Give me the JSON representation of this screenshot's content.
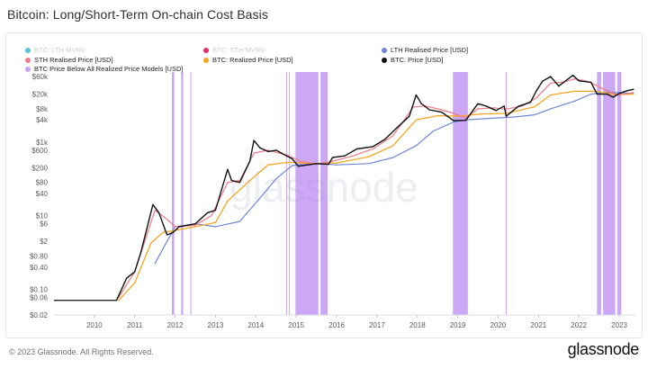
{
  "header": {
    "title": "Bitcoin: Long/Short-Term On-chain Cost Basis"
  },
  "legend": {
    "items": [
      {
        "label": "BTC: LTH-MVRV",
        "color": "#59c3d8",
        "active": false
      },
      {
        "label": "BTC: STH-MVRV",
        "color": "#e3306c",
        "active": false
      },
      {
        "label": "LTH Realised Price [USD]",
        "color": "#6f86d6",
        "active": true
      },
      {
        "label": "STH Realised Price [USD]",
        "color": "#f07a86",
        "active": true
      },
      {
        "label": "BTC: Realized Price [USD]",
        "color": "#f5a623",
        "active": true
      },
      {
        "label": "BTC: Price [USD]",
        "color": "#111111",
        "active": true
      },
      {
        "label": "BTC Price Below All Realized Price Models [USD]",
        "color": "#c9a2f5",
        "active": true
      }
    ]
  },
  "watermark": "glassnode",
  "footer": {
    "copyright": "© 2023 Glassnode. All Rights Reserved.",
    "brand": "glassnode"
  },
  "chart_data": {
    "type": "line",
    "title": "Bitcoin: Long/Short-Term On-chain Cost Basis",
    "y_scale": "log",
    "xlim": [
      2009.0,
      2023.4
    ],
    "ylim": [
      0.02,
      80000
    ],
    "x_ticks": [
      {
        "v": 2010,
        "label": "2010"
      },
      {
        "v": 2011,
        "label": "2011"
      },
      {
        "v": 2012,
        "label": "2012"
      },
      {
        "v": 2013,
        "label": "2013"
      },
      {
        "v": 2014,
        "label": "2014"
      },
      {
        "v": 2015,
        "label": "2015"
      },
      {
        "v": 2016,
        "label": "2016"
      },
      {
        "v": 2017,
        "label": "2017"
      },
      {
        "v": 2018,
        "label": "2018"
      },
      {
        "v": 2019,
        "label": "2019"
      },
      {
        "v": 2020,
        "label": "2020"
      },
      {
        "v": 2021,
        "label": "2021"
      },
      {
        "v": 2022,
        "label": "2022"
      },
      {
        "v": 2023,
        "label": "2023"
      }
    ],
    "y_ticks": [
      {
        "v": 0.02,
        "label": "$0.02"
      },
      {
        "v": 0.06,
        "label": "$0.06"
      },
      {
        "v": 0.1,
        "label": "$0.10"
      },
      {
        "v": 0.4,
        "label": "$0.40"
      },
      {
        "v": 0.8,
        "label": "$0.80"
      },
      {
        "v": 2,
        "label": "$2"
      },
      {
        "v": 6,
        "label": "$6"
      },
      {
        "v": 10,
        "label": "$10"
      },
      {
        "v": 40,
        "label": "$40"
      },
      {
        "v": 80,
        "label": "$80"
      },
      {
        "v": 200,
        "label": "$200"
      },
      {
        "v": 600,
        "label": "$600"
      },
      {
        "v": 1000,
        "label": "$1k"
      },
      {
        "v": 4000,
        "label": "$4k"
      },
      {
        "v": 8000,
        "label": "$8k"
      },
      {
        "v": 20000,
        "label": "$20k"
      },
      {
        "v": 60000,
        "label": "$60k"
      }
    ],
    "grid": false,
    "legend_position": "top",
    "series": [
      {
        "name": "BTC: Price [USD]",
        "color": "#111111",
        "points": [
          [
            2010.55,
            0.05
          ],
          [
            2010.8,
            0.2
          ],
          [
            2011.0,
            0.3
          ],
          [
            2011.15,
            1
          ],
          [
            2011.45,
            20
          ],
          [
            2011.6,
            12
          ],
          [
            2011.8,
            3
          ],
          [
            2011.95,
            3.5
          ],
          [
            2012.1,
            5
          ],
          [
            2012.5,
            6
          ],
          [
            2012.8,
            12
          ],
          [
            2013.0,
            14
          ],
          [
            2013.3,
            180
          ],
          [
            2013.4,
            90
          ],
          [
            2013.6,
            80
          ],
          [
            2013.85,
            300
          ],
          [
            2013.95,
            1100
          ],
          [
            2014.1,
            700
          ],
          [
            2014.3,
            550
          ],
          [
            2014.5,
            600
          ],
          [
            2014.9,
            350
          ],
          [
            2015.05,
            220
          ],
          [
            2015.5,
            260
          ],
          [
            2015.8,
            250
          ],
          [
            2015.9,
            380
          ],
          [
            2016.2,
            420
          ],
          [
            2016.5,
            650
          ],
          [
            2016.9,
            750
          ],
          [
            2017.2,
            1200
          ],
          [
            2017.5,
            2500
          ],
          [
            2017.8,
            5000
          ],
          [
            2017.97,
            19000
          ],
          [
            2018.1,
            11000
          ],
          [
            2018.3,
            7500
          ],
          [
            2018.6,
            6500
          ],
          [
            2018.9,
            3800
          ],
          [
            2019.2,
            3900
          ],
          [
            2019.5,
            11000
          ],
          [
            2019.7,
            9500
          ],
          [
            2019.95,
            7200
          ],
          [
            2020.15,
            9500
          ],
          [
            2020.2,
            5000
          ],
          [
            2020.5,
            9300
          ],
          [
            2020.8,
            12000
          ],
          [
            2020.95,
            25000
          ],
          [
            2021.1,
            45000
          ],
          [
            2021.3,
            60000
          ],
          [
            2021.5,
            33000
          ],
          [
            2021.6,
            40000
          ],
          [
            2021.85,
            65000
          ],
          [
            2022.0,
            46000
          ],
          [
            2022.3,
            42000
          ],
          [
            2022.45,
            20000
          ],
          [
            2022.7,
            20000
          ],
          [
            2022.85,
            16500
          ],
          [
            2023.0,
            21000
          ],
          [
            2023.2,
            25000
          ],
          [
            2023.35,
            27000
          ]
        ]
      },
      {
        "name": "STH Realised Price [USD]",
        "color": "#f07a86",
        "points": [
          [
            2010.6,
            0.06
          ],
          [
            2011.0,
            0.3
          ],
          [
            2011.3,
            3
          ],
          [
            2011.5,
            14
          ],
          [
            2011.8,
            8
          ],
          [
            2012.0,
            5
          ],
          [
            2012.5,
            5.5
          ],
          [
            2012.9,
            10
          ],
          [
            2013.3,
            80
          ],
          [
            2013.6,
            90
          ],
          [
            2013.95,
            500
          ],
          [
            2014.3,
            600
          ],
          [
            2014.8,
            430
          ],
          [
            2015.1,
            300
          ],
          [
            2015.5,
            250
          ],
          [
            2015.9,
            300
          ],
          [
            2016.4,
            420
          ],
          [
            2016.9,
            650
          ],
          [
            2017.4,
            1500
          ],
          [
            2017.9,
            9000
          ],
          [
            2018.2,
            9500
          ],
          [
            2018.6,
            7500
          ],
          [
            2018.9,
            6000
          ],
          [
            2019.2,
            4500
          ],
          [
            2019.5,
            8000
          ],
          [
            2019.9,
            8500
          ],
          [
            2020.2,
            7800
          ],
          [
            2020.6,
            9500
          ],
          [
            2020.95,
            16000
          ],
          [
            2021.3,
            40000
          ],
          [
            2021.6,
            42000
          ],
          [
            2021.9,
            52000
          ],
          [
            2022.2,
            45000
          ],
          [
            2022.5,
            32000
          ],
          [
            2022.8,
            22000
          ],
          [
            2023.0,
            19000
          ],
          [
            2023.35,
            22000
          ]
        ]
      },
      {
        "name": "BTC: Realized Price [USD]",
        "color": "#f5a623",
        "points": [
          [
            2010.6,
            0.05
          ],
          [
            2011.0,
            0.15
          ],
          [
            2011.4,
            1.8
          ],
          [
            2011.7,
            3.5
          ],
          [
            2012.0,
            4
          ],
          [
            2012.5,
            5
          ],
          [
            2013.0,
            6.5
          ],
          [
            2013.3,
            25
          ],
          [
            2013.9,
            100
          ],
          [
            2014.3,
            240
          ],
          [
            2014.8,
            280
          ],
          [
            2015.5,
            260
          ],
          [
            2016.0,
            270
          ],
          [
            2016.8,
            400
          ],
          [
            2017.4,
            800
          ],
          [
            2017.97,
            4000
          ],
          [
            2018.5,
            5200
          ],
          [
            2019.0,
            5000
          ],
          [
            2019.6,
            5800
          ],
          [
            2020.2,
            6000
          ],
          [
            2020.9,
            9000
          ],
          [
            2021.3,
            19000
          ],
          [
            2021.9,
            24000
          ],
          [
            2022.4,
            24000
          ],
          [
            2022.9,
            19500
          ],
          [
            2023.35,
            20000
          ]
        ]
      },
      {
        "name": "LTH Realised Price [USD]",
        "color": "#6f86d6",
        "points": [
          [
            2011.5,
            0.5
          ],
          [
            2011.8,
            2
          ],
          [
            2012.0,
            5
          ],
          [
            2012.5,
            6
          ],
          [
            2013.0,
            5
          ],
          [
            2013.6,
            7
          ],
          [
            2014.1,
            30
          ],
          [
            2014.5,
            100
          ],
          [
            2014.9,
            230
          ],
          [
            2015.5,
            260
          ],
          [
            2016.0,
            240
          ],
          [
            2016.8,
            260
          ],
          [
            2017.4,
            380
          ],
          [
            2017.97,
            800
          ],
          [
            2018.4,
            2000
          ],
          [
            2018.9,
            3500
          ],
          [
            2019.2,
            4000
          ],
          [
            2019.8,
            4400
          ],
          [
            2020.4,
            4800
          ],
          [
            2020.9,
            5500
          ],
          [
            2021.3,
            8000
          ],
          [
            2021.9,
            13000
          ],
          [
            2022.3,
            20000
          ],
          [
            2022.6,
            22000
          ],
          [
            2023.0,
            22000
          ],
          [
            2023.35,
            21000
          ]
        ]
      }
    ],
    "below_all_models_bands": [
      [
        2011.92,
        2011.98
      ],
      [
        2012.15,
        2012.2
      ],
      [
        2012.38,
        2012.4
      ],
      [
        2014.75,
        2014.76
      ],
      [
        2014.82,
        2014.83
      ],
      [
        2014.98,
        2015.55
      ],
      [
        2015.6,
        2015.78
      ],
      [
        2018.88,
        2019.25
      ],
      [
        2020.19,
        2020.21
      ],
      [
        2022.45,
        2022.55
      ],
      [
        2022.6,
        2022.9
      ],
      [
        2022.95,
        2023.05
      ]
    ]
  }
}
